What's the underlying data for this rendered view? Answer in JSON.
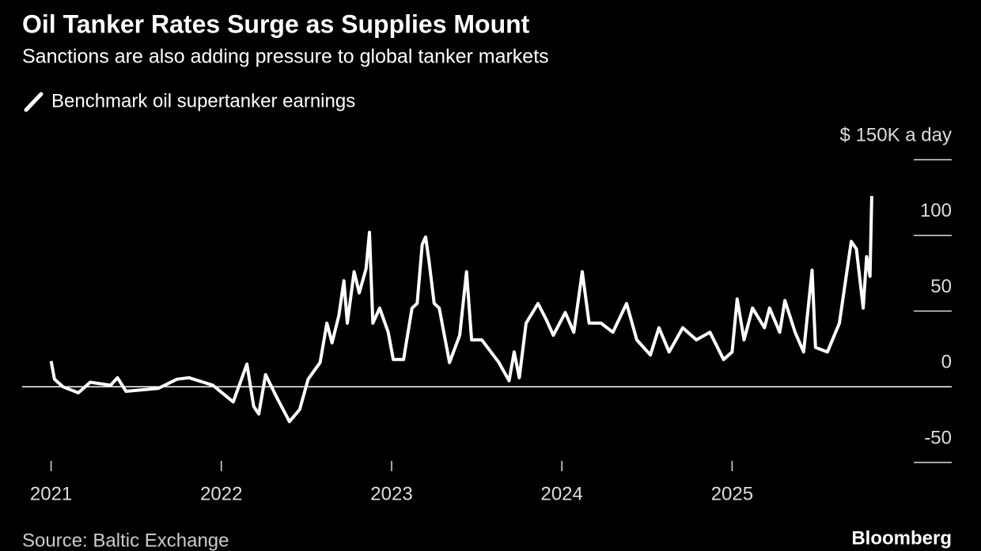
{
  "chart_data": {
    "type": "line",
    "title": "Oil Tanker Rates Surge as Supplies Mount",
    "subtitle": "Sanctions are also adding pressure to global tanker markets",
    "source": "Source: Baltic Exchange",
    "brand": "Bloomberg",
    "xlim": [
      2020.83,
      2026.29
    ],
    "xticks": [
      2021,
      2022,
      2023,
      2024,
      2025
    ],
    "ylim": [
      -50,
      150
    ],
    "yticks": [
      -50,
      0,
      50,
      100,
      {
        "value": 150,
        "label": "$ 150K a day"
      }
    ],
    "x": [
      2021.0,
      2021.02,
      2021.07,
      2021.16,
      2021.23,
      2021.35,
      2021.39,
      2021.44,
      2021.63,
      2021.74,
      2021.81,
      2021.95,
      2022.07,
      2022.15,
      2022.19,
      2022.22,
      2022.26,
      2022.33,
      2022.4,
      2022.46,
      2022.51,
      2022.58,
      2022.62,
      2022.65,
      2022.69,
      2022.72,
      2022.74,
      2022.78,
      2022.81,
      2022.85,
      2022.87,
      2022.89,
      2022.93,
      2022.98,
      2023.01,
      2023.07,
      2023.12,
      2023.15,
      2023.18,
      2023.2,
      2023.22,
      2023.25,
      2023.28,
      2023.34,
      2023.4,
      2023.44,
      2023.47,
      2023.53,
      2023.63,
      2023.69,
      2023.72,
      2023.75,
      2023.79,
      2023.86,
      2023.91,
      2023.95,
      2024.02,
      2024.07,
      2024.12,
      2024.16,
      2024.23,
      2024.3,
      2024.38,
      2024.44,
      2024.52,
      2024.57,
      2024.63,
      2024.71,
      2024.79,
      2024.87,
      2024.95,
      2025.0,
      2025.03,
      2025.07,
      2025.12,
      2025.19,
      2025.22,
      2025.28,
      2025.31,
      2025.37,
      2025.42,
      2025.47,
      2025.49,
      2025.56,
      2025.63,
      2025.7,
      2025.73,
      2025.77,
      2025.79,
      2025.81,
      2025.82
    ],
    "series": [
      {
        "name": "Benchmark oil supertanker earnings",
        "color": "#ffffff",
        "values": [
          17,
          5,
          0,
          -4,
          3,
          1,
          6,
          -3,
          -1,
          5,
          6,
          1,
          -10,
          15,
          -13,
          -18,
          8,
          -8,
          -23,
          -15,
          5,
          16,
          42,
          29,
          47,
          70,
          42,
          76,
          62,
          78,
          102,
          42,
          52,
          36,
          18,
          18,
          52,
          55,
          94,
          99,
          83,
          55,
          52,
          16,
          34,
          76,
          31,
          31,
          16,
          4,
          23,
          6,
          42,
          55,
          44,
          34,
          49,
          36,
          76,
          42,
          42,
          36,
          55,
          31,
          21,
          39,
          23,
          39,
          31,
          36,
          18,
          23,
          58,
          31,
          52,
          39,
          52,
          36,
          57,
          36,
          23,
          77,
          26,
          23,
          42,
          96,
          91,
          52,
          86,
          73,
          126
        ]
      }
    ]
  }
}
